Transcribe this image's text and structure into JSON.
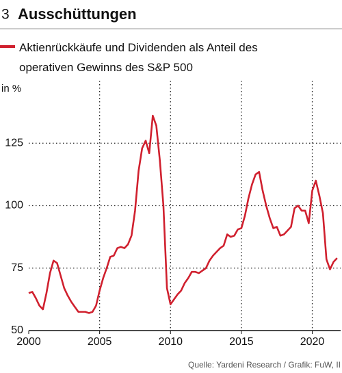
{
  "chart_data": {
    "type": "line",
    "chart_number": "3",
    "title": "Ausschüttungen",
    "y_label": "in %",
    "source": "Quelle: Yardeni Research / Grafik: FuW, II",
    "xlim": [
      2000,
      2022
    ],
    "ylim": [
      50,
      150
    ],
    "xticks": [
      2000,
      2005,
      2010,
      2015,
      2020
    ],
    "yticks": [
      50,
      75,
      100,
      125
    ],
    "grid": true,
    "x": [
      2000,
      2000.25,
      2000.5,
      2000.75,
      2001,
      2001.25,
      2001.5,
      2001.75,
      2002,
      2002.25,
      2002.5,
      2002.75,
      2003,
      2003.25,
      2003.5,
      2003.75,
      2004,
      2004.25,
      2004.5,
      2004.75,
      2005,
      2005.25,
      2005.5,
      2005.75,
      2006,
      2006.25,
      2006.5,
      2006.75,
      2007,
      2007.25,
      2007.5,
      2007.75,
      2008,
      2008.25,
      2008.5,
      2008.75,
      2009,
      2009.25,
      2009.5,
      2009.75,
      2010,
      2010.25,
      2010.5,
      2010.75,
      2011,
      2011.25,
      2011.5,
      2011.75,
      2012,
      2012.25,
      2012.5,
      2012.75,
      2013,
      2013.25,
      2013.5,
      2013.75,
      2014,
      2014.25,
      2014.5,
      2014.75,
      2015,
      2015.25,
      2015.5,
      2015.75,
      2016,
      2016.25,
      2016.5,
      2016.75,
      2017,
      2017.25,
      2017.5,
      2017.75,
      2018,
      2018.25,
      2018.5,
      2018.75,
      2019,
      2019.25,
      2019.5,
      2019.75,
      2020,
      2020.25,
      2020.5,
      2020.75,
      2021,
      2021.25,
      2021.5,
      2021.75
    ],
    "series": [
      {
        "name": "Aktienrückkäufe und Dividenden als Anteil des operativen Gewinns des S&P 500",
        "color": "#d0202e",
        "values": [
          65,
          65.5,
          63,
          60,
          58.5,
          65,
          73,
          78,
          77,
          72,
          67,
          64,
          61.5,
          59.5,
          57.5,
          57.5,
          57.5,
          57,
          57.5,
          60,
          66,
          71,
          75,
          79.5,
          80,
          83,
          83.5,
          83,
          84.5,
          88,
          98,
          114,
          123,
          126,
          121,
          136,
          132,
          118,
          100,
          67,
          60.5,
          62.5,
          64.5,
          66,
          69,
          71,
          73.5,
          73.5,
          73,
          74,
          75,
          78,
          80,
          81.5,
          83,
          84,
          88.5,
          87.5,
          88,
          90.5,
          91,
          96,
          103,
          108.5,
          112.5,
          113.5,
          106,
          100,
          95,
          91,
          91.5,
          88,
          88.5,
          90,
          91.5,
          99,
          100,
          98,
          98,
          93,
          106,
          110,
          104,
          97,
          78.5,
          74.5,
          77.5,
          79
        ]
      }
    ]
  }
}
